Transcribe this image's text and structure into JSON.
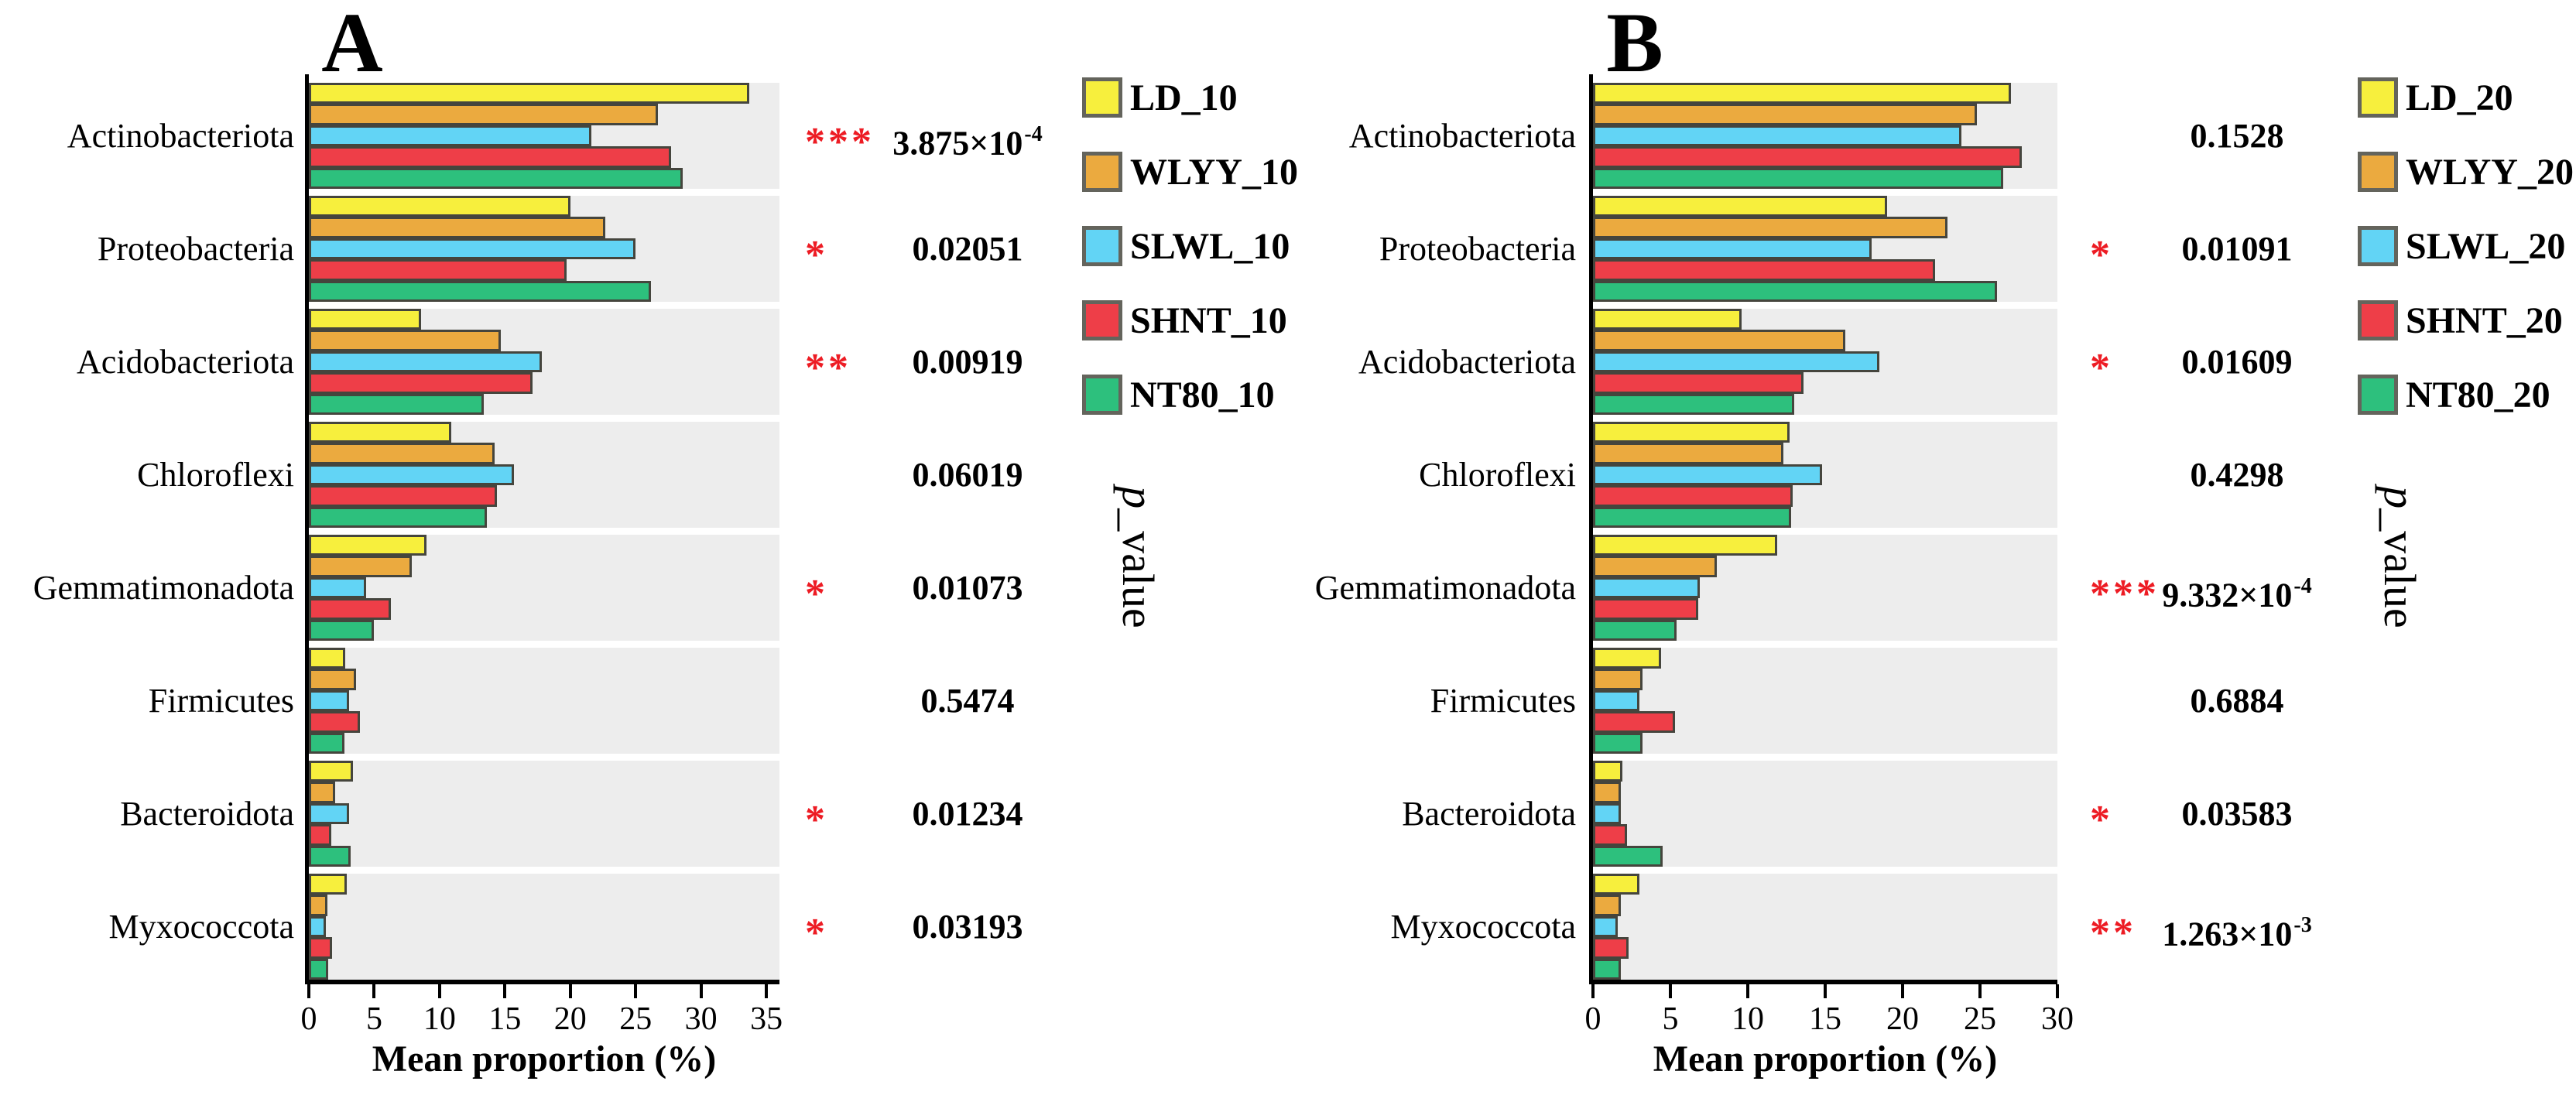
{
  "styles": {
    "band": "#EDEDED",
    "bar_border": "#45453D",
    "star_color": "#ED1C24",
    "axis_color": "#000000",
    "background": "#FFFFFF",
    "legend_border": "#64645C"
  },
  "chart_data": [
    {
      "type": "bar",
      "orientation": "horizontal",
      "panel_label": "A",
      "xlabel": "Mean proportion (%)",
      "right_axis_label": "p_value",
      "xlim": [
        0,
        36
      ],
      "xticks": [
        0,
        5,
        10,
        15,
        20,
        25,
        30,
        35
      ],
      "grid": false,
      "legend_position": "right-top",
      "categories": [
        "Actinobacteriota",
        "Proteobacteria",
        "Acidobacteriota",
        "Chloroflexi",
        "Gemmatimonadota",
        "Firmicutes",
        "Bacteroidota",
        "Myxococcota"
      ],
      "series": [
        {
          "name": "LD_10",
          "color": "#F7EF3D",
          "values": [
            33.7,
            20.0,
            8.6,
            10.9,
            9.0,
            2.8,
            3.4,
            2.9
          ]
        },
        {
          "name": "WLYY_10",
          "color": "#EBAA3F",
          "values": [
            26.7,
            22.7,
            14.7,
            14.2,
            7.9,
            3.6,
            2.0,
            1.4
          ]
        },
        {
          "name": "SLWL_10",
          "color": "#62D4F5",
          "values": [
            21.6,
            25.0,
            17.8,
            15.7,
            4.4,
            3.1,
            3.1,
            1.3
          ]
        },
        {
          "name": "SHNT_10",
          "color": "#EE3E48",
          "values": [
            27.7,
            19.7,
            17.1,
            14.4,
            6.3,
            3.9,
            1.7,
            1.8
          ]
        },
        {
          "name": "NT80_10",
          "color": "#2DC07D",
          "values": [
            28.6,
            26.2,
            13.4,
            13.6,
            5.0,
            2.7,
            3.2,
            1.5
          ]
        }
      ],
      "p_values": [
        {
          "stars": "***",
          "base": "3.875×10",
          "sup": "-4"
        },
        {
          "stars": "*",
          "base": "0.02051",
          "sup": ""
        },
        {
          "stars": "**",
          "base": "0.00919",
          "sup": ""
        },
        {
          "stars": "",
          "base": "0.06019",
          "sup": ""
        },
        {
          "stars": "*",
          "base": "0.01073",
          "sup": ""
        },
        {
          "stars": "",
          "base": "0.5474",
          "sup": ""
        },
        {
          "stars": "*",
          "base": "0.01234",
          "sup": ""
        },
        {
          "stars": "*",
          "base": "0.03193",
          "sup": ""
        }
      ]
    },
    {
      "type": "bar",
      "orientation": "horizontal",
      "panel_label": "B",
      "xlabel": "Mean proportion (%)",
      "right_axis_label": "p_value",
      "xlim": [
        0,
        30
      ],
      "xticks": [
        0,
        5,
        10,
        15,
        20,
        25,
        30
      ],
      "grid": false,
      "legend_position": "right-top",
      "categories": [
        "Actinobacteriota",
        "Proteobacteria",
        "Acidobacteriota",
        "Chloroflexi",
        "Gemmatimonadota",
        "Firmicutes",
        "Bacteroidota",
        "Myxococcota"
      ],
      "series": [
        {
          "name": "LD_20",
          "color": "#F7EF3D",
          "values": [
            27.0,
            19.0,
            9.6,
            12.7,
            11.9,
            4.4,
            1.9,
            3.0
          ]
        },
        {
          "name": "WLYY_20",
          "color": "#EBAA3F",
          "values": [
            24.8,
            22.9,
            16.3,
            12.3,
            8.0,
            3.2,
            1.8,
            1.8
          ]
        },
        {
          "name": "SLWL_20",
          "color": "#62D4F5",
          "values": [
            23.8,
            18.0,
            18.5,
            14.8,
            6.9,
            3.0,
            1.8,
            1.6
          ]
        },
        {
          "name": "SHNT_20",
          "color": "#EE3E48",
          "values": [
            27.7,
            22.1,
            13.6,
            12.9,
            6.8,
            5.3,
            2.2,
            2.3
          ]
        },
        {
          "name": "NT80_20",
          "color": "#2DC07D",
          "values": [
            26.5,
            26.1,
            13.0,
            12.8,
            5.4,
            3.2,
            4.5,
            1.8
          ]
        }
      ],
      "p_values": [
        {
          "stars": "",
          "base": "0.1528",
          "sup": ""
        },
        {
          "stars": "*",
          "base": "0.01091",
          "sup": ""
        },
        {
          "stars": "*",
          "base": "0.01609",
          "sup": ""
        },
        {
          "stars": "",
          "base": "0.4298",
          "sup": ""
        },
        {
          "stars": "***",
          "base": "9.332×10",
          "sup": "-4"
        },
        {
          "stars": "",
          "base": "0.6884",
          "sup": ""
        },
        {
          "stars": "*",
          "base": "0.03583",
          "sup": ""
        },
        {
          "stars": "**",
          "base": "1.263×10",
          "sup": "-3"
        }
      ]
    }
  ]
}
